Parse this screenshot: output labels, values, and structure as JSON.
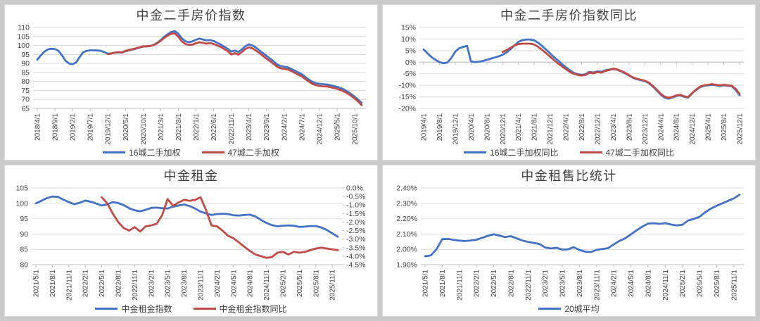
{
  "style": {
    "background": "#cbcbcb",
    "panel_background": "#ffffff",
    "panel_border": "#d9d9d9",
    "gridline": "#d9d9d9",
    "axis_line": "#bfbfbf",
    "text": "#404040",
    "series_blue": "#4472c4",
    "series_red": "#be4b48"
  },
  "chart_data": [
    {
      "type": "line",
      "title": "中金二手房价指数",
      "y_axis": {
        "min": 65,
        "max": 110,
        "step": 5,
        "labels": [
          "110",
          "105",
          "100",
          "95",
          "90",
          "85",
          "80",
          "75",
          "70",
          "65"
        ]
      },
      "x_start": "2018/4/1",
      "months_total": 93,
      "x_tick_interval": 5,
      "x_tick_labels": [
        "2018/4/1",
        "2018/9/1",
        "2019/2/1",
        "2019/7/1",
        "2019/12/1",
        "2020/5/1",
        "2020/10/1",
        "2021/3/1",
        "2021/8/1",
        "2022/1/1",
        "2022/6/1",
        "2022/11/1",
        "2023/4/1",
        "2023/9/1",
        "2024/2/1",
        "2024/7/1",
        "2024/12/1",
        "2025/5/1",
        "2025/10/1"
      ],
      "series": [
        {
          "name": "16城二手加权",
          "color": "#4472c4",
          "start": 0,
          "values": [
            92,
            94.5,
            96.5,
            97.8,
            98.2,
            98,
            97,
            94.5,
            91.5,
            90,
            89.6,
            90.5,
            93.5,
            96.2,
            97,
            97.3,
            97.3,
            97.2,
            97,
            96.3,
            95.4,
            95.6,
            96,
            96.2,
            96,
            96.8,
            97.3,
            97.7,
            98.2,
            98.8,
            99.4,
            99.5,
            99.7,
            100.3,
            101.5,
            103,
            104.8,
            106.3,
            107.5,
            108,
            106.5,
            104,
            102.3,
            101.8,
            102.3,
            103.2,
            103.8,
            103.3,
            102.8,
            103,
            102.5,
            101.5,
            100.5,
            99.3,
            98.2,
            96.6,
            97.2,
            96.4,
            97.8,
            99.5,
            100.6,
            100,
            98.8,
            97.2,
            95.7,
            94.2,
            92.7,
            91.2,
            89.5,
            88.5,
            88.2,
            87.9,
            87,
            86,
            85,
            84,
            82.5,
            81,
            79.8,
            79,
            78.7,
            78.5,
            78.3,
            78,
            77.5,
            77,
            76.3,
            75.5,
            74.3,
            73,
            71.5,
            69.8,
            68
          ]
        },
        {
          "name": "47城二手加权",
          "color": "#be4b48",
          "start": 20,
          "values": [
            95.2,
            95.5,
            96,
            96.3,
            96.2,
            97,
            97.5,
            97.9,
            98.4,
            99,
            99.5,
            99.5,
            99.7,
            100.2,
            101.2,
            102.6,
            104.2,
            105.5,
            106.5,
            106.7,
            104.8,
            102.3,
            100.8,
            100.3,
            100.5,
            101.2,
            101.8,
            101.4,
            101,
            101.3,
            100.8,
            100,
            99.2,
            98,
            96.8,
            95,
            95.8,
            94.9,
            96.3,
            98,
            99,
            98.4,
            97.2,
            95.7,
            94.2,
            92.7,
            91.2,
            89.8,
            88.2,
            87.3,
            87,
            86.7,
            85.8,
            84.8,
            83.8,
            82.8,
            81.3,
            79.9,
            78.7,
            78,
            77.5,
            77.3,
            77.2,
            76.9,
            76.4,
            75.9,
            75.2,
            74.4,
            73.3,
            72,
            70.5,
            68.8,
            66.8
          ]
        }
      ]
    },
    {
      "type": "line",
      "title": "中金二手房价指数同比",
      "y_axis": {
        "min": -20,
        "max": 15,
        "step": 5,
        "labels": [
          "15%",
          "10%",
          "5%",
          "0%",
          "-5%",
          "-10%",
          "-15%",
          "-20%"
        ]
      },
      "axis_at_zero": true,
      "x_start": "2019/4/1",
      "months_total": 81,
      "x_tick_interval": 4,
      "x_tick_labels": [
        "2019/4/1",
        "2019/8/1",
        "2019/12/1",
        "2020/4/1",
        "2020/8/1",
        "2020/12/1",
        "2021/4/1",
        "2021/8/1",
        "2021/12/1",
        "2022/4/1",
        "2022/8/1",
        "2022/12/1",
        "2023/4/1",
        "2023/8/1",
        "2023/12/1",
        "2024/4/1",
        "2024/8/1",
        "2024/12/1",
        "2025/4/1",
        "2025/8/1",
        "2025/12/1"
      ],
      "series": [
        {
          "name": "16城二手加权同比",
          "color": "#4472c4",
          "start": 0,
          "values": [
            5.5,
            3.8,
            2.2,
            1,
            0,
            -0.5,
            -0.2,
            1.8,
            4.5,
            6,
            6.6,
            7,
            0.3,
            0,
            0.2,
            0.5,
            1,
            1.5,
            2,
            2.5,
            3.2,
            4.2,
            5.6,
            7.2,
            8.8,
            9.5,
            9.8,
            9.8,
            9.4,
            8.4,
            7,
            5.4,
            3.8,
            2.2,
            0.8,
            -0.8,
            -2.2,
            -3.5,
            -4.6,
            -5.2,
            -5.5,
            -5.2,
            -4.2,
            -4.5,
            -4,
            -4.2,
            -3.5,
            -3.2,
            -3,
            -3.3,
            -4,
            -4.8,
            -5.8,
            -6.8,
            -7.4,
            -7.8,
            -8.2,
            -9,
            -10.5,
            -12.2,
            -14,
            -15.3,
            -15.8,
            -15.3,
            -14.6,
            -14.3,
            -15,
            -15.3,
            -13.5,
            -12,
            -10.8,
            -10.2,
            -10,
            -9.8,
            -10,
            -10.3,
            -10,
            -10.2,
            -10.4,
            -12,
            -14.3
          ]
        },
        {
          "name": "47城二手加权同比",
          "color": "#be4b48",
          "start": 20,
          "values": [
            4.4,
            5.2,
            6.2,
            7.2,
            7.8,
            8,
            8,
            8,
            7.6,
            6.6,
            5.3,
            3.9,
            2.4,
            0.9,
            -0.5,
            -1.8,
            -3,
            -4.2,
            -5,
            -5.5,
            -5.8,
            -5.5,
            -4.5,
            -4.8,
            -4.3,
            -4.5,
            -3.8,
            -3.4,
            -2.8,
            -3.1,
            -3.8,
            -4.6,
            -5.6,
            -6.6,
            -7.2,
            -7.6,
            -8,
            -8.8,
            -10.2,
            -11.8,
            -13.7,
            -14.9,
            -15.4,
            -15,
            -14.4,
            -14.1,
            -14.8,
            -15.1,
            -13.4,
            -11.8,
            -10.6,
            -10,
            -9.8,
            -9.5,
            -9.8,
            -10,
            -9.8,
            -10,
            -10.2,
            -11.5,
            -13.8
          ]
        }
      ]
    },
    {
      "type": "line",
      "title": "中金租金",
      "y_axis": {
        "min": 80,
        "max": 105,
        "step": 5,
        "labels": [
          "105",
          "100",
          "95",
          "90",
          "85",
          "80"
        ]
      },
      "y2_axis": {
        "min": -4.5,
        "max": 0,
        "step": 0.5,
        "labels": [
          "0.0%",
          "-0.5%",
          "-1.0%",
          "-1.5%",
          "-2.0%",
          "-2.5%",
          "-3.0%",
          "-3.5%",
          "-4.0%",
          "-4.5%"
        ]
      },
      "x_start": "2021/5/1",
      "months_total": 56,
      "x_tick_interval": 3,
      "x_tick_labels": [
        "2021/5/1",
        "2021/8/1",
        "2021/11/1",
        "2022/2/1",
        "2022/5/1",
        "2022/8/1",
        "2022/11/1",
        "2023/2/1",
        "2023/5/1",
        "2023/8/1",
        "2023/11/1",
        "2024/2/1",
        "2024/5/1",
        "2024/8/1",
        "2024/11/1",
        "2025/2/1",
        "2025/5/1",
        "2025/8/1",
        "2025/11/1"
      ],
      "series": [
        {
          "name": "中金租金指数",
          "color": "#4472c4",
          "start": 0,
          "values": [
            100,
            100.8,
            101.7,
            102.2,
            102.1,
            101.2,
            100.4,
            99.7,
            100.2,
            100.9,
            100.5,
            99.9,
            99.3,
            99.6,
            100.4,
            100.1,
            99.4,
            98.4,
            97.7,
            97.4,
            97.9,
            98.5,
            98.6,
            98.4,
            98.3,
            98.9,
            99.3,
            99.6,
            99.1,
            98.3,
            97.3,
            96.7,
            96.2,
            96.5,
            96.6,
            96.5,
            96.1,
            96,
            96.2,
            96.3,
            95.7,
            94.6,
            93.6,
            92.9,
            92.5,
            92.7,
            92.8,
            92.7,
            92.3,
            92.4,
            92.6,
            92.6,
            92.1,
            91.3,
            90.2,
            89.1
          ]
        },
        {
          "name": "中金租金指数同比",
          "color": "#be4b48",
          "start": 12,
          "axis": "y2",
          "values": [
            -0.55,
            -0.9,
            -1.5,
            -2,
            -2.35,
            -2.5,
            -2.3,
            -2.55,
            -2.25,
            -2.2,
            -2.1,
            -1.6,
            -0.65,
            -1.05,
            -0.85,
            -0.7,
            -0.75,
            -0.7,
            -0.55,
            -1.3,
            -2.2,
            -2.25,
            -2.5,
            -2.8,
            -2.95,
            -3.2,
            -3.45,
            -3.7,
            -3.9,
            -4,
            -4.1,
            -4.05,
            -3.8,
            -3.75,
            -3.9,
            -3.75,
            -3.8,
            -3.75,
            -3.65,
            -3.55,
            -3.5,
            -3.55,
            -3.6,
            -3.65
          ]
        }
      ]
    },
    {
      "type": "line",
      "title": "中金租售比统计",
      "y_axis": {
        "min": 1.9,
        "max": 2.4,
        "step": 0.1,
        "labels": [
          "2.40%",
          "2.30%",
          "2.20%",
          "2.10%",
          "2.00%",
          "1.90%"
        ]
      },
      "x_start": "2021/5/1",
      "months_total": 56,
      "x_tick_interval": 3,
      "x_tick_labels": [
        "2021/5/1",
        "2021/8/1",
        "2021/11/1",
        "2022/2/1",
        "2022/5/1",
        "2022/8/1",
        "2022/11/1",
        "2023/2/1",
        "2023/5/1",
        "2023/8/1",
        "2023/11/1",
        "2024/2/1",
        "2024/5/1",
        "2024/8/1",
        "2024/11/1",
        "2025/2/1",
        "2025/5/1",
        "2025/8/1",
        "2025/11/1"
      ],
      "series": [
        {
          "name": "20城平均",
          "color": "#4472c4",
          "start": 0,
          "values": [
            1.955,
            1.96,
            2,
            2.066,
            2.068,
            2.062,
            2.057,
            2.054,
            2.058,
            2.063,
            2.075,
            2.088,
            2.098,
            2.09,
            2.08,
            2.086,
            2.072,
            2.058,
            2.048,
            2.042,
            2.035,
            2.012,
            2.006,
            2.01,
            1.998,
            2,
            2.014,
            1.996,
            1.985,
            1.982,
            1.997,
            2.002,
            2.008,
            2.032,
            2.055,
            2.072,
            2.098,
            2.124,
            2.148,
            2.168,
            2.17,
            2.166,
            2.17,
            2.162,
            2.156,
            2.16,
            2.188,
            2.198,
            2.212,
            2.242,
            2.266,
            2.284,
            2.3,
            2.316,
            2.332,
            2.356
          ]
        }
      ]
    }
  ]
}
